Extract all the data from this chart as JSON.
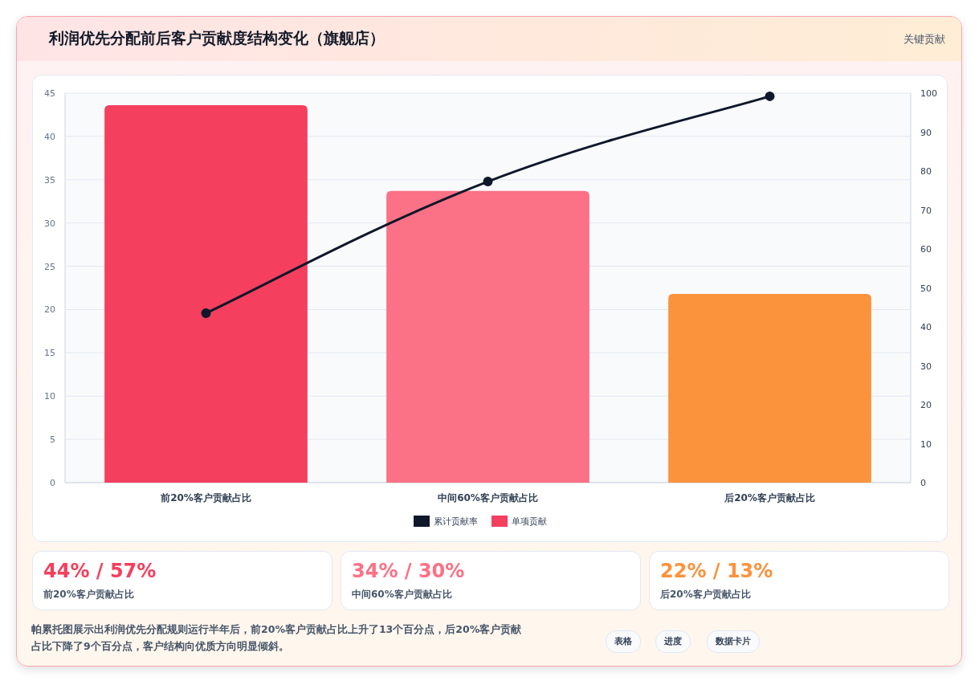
{
  "chart_data": [
    {
      "type": "bar",
      "title": "利润优先分配前后客户贡献度结构变化（旗舰店）",
      "annotations": [
        "关键贡献"
      ],
      "categories": [
        "前20%客户贡献占比",
        "中间60%客户贡献占比",
        "后20%客户贡献占比"
      ],
      "series": [
        {
          "name": "累计贡献率",
          "type": "line",
          "axis": "y2",
          "color": "#0f172a",
          "marker": "circle",
          "values": [
            43.5,
            77.3,
            99.2
          ]
        },
        {
          "name": "单项贡献",
          "type": "bar",
          "color": "#f43f5e",
          "colors": [
            "#f43f5e",
            "#fb7185",
            "#fb923c"
          ],
          "values": [
            43.6,
            33.7,
            21.8
          ]
        }
      ],
      "ylim": [
        0,
        45
      ],
      "yticks": [
        0,
        5,
        10,
        15,
        20,
        25,
        30,
        35,
        40,
        45
      ],
      "y2lim": [
        0,
        100
      ],
      "y2ticks": [
        0,
        10,
        20,
        30,
        40,
        50,
        60,
        70,
        80,
        90,
        100
      ],
      "grid": "y",
      "legend": "bottom"
    },
    {
      "type": "other",
      "annotations": [
        "44% / 57%",
        "前20%客户贡献占比",
        "34% / 30%",
        "中间60%客户贡献占比",
        "22% / 13%",
        "后20%客户贡献占比",
        "帕累托图展示出利润优先分配规则运行半年后，前20%客户贡献占比上升了13个百分点，后20%客户贡献占比下降了9个百分点，客户结构向优质方向明显倾斜。",
        "表格",
        "进度",
        "数据卡片"
      ]
    }
  ]
}
